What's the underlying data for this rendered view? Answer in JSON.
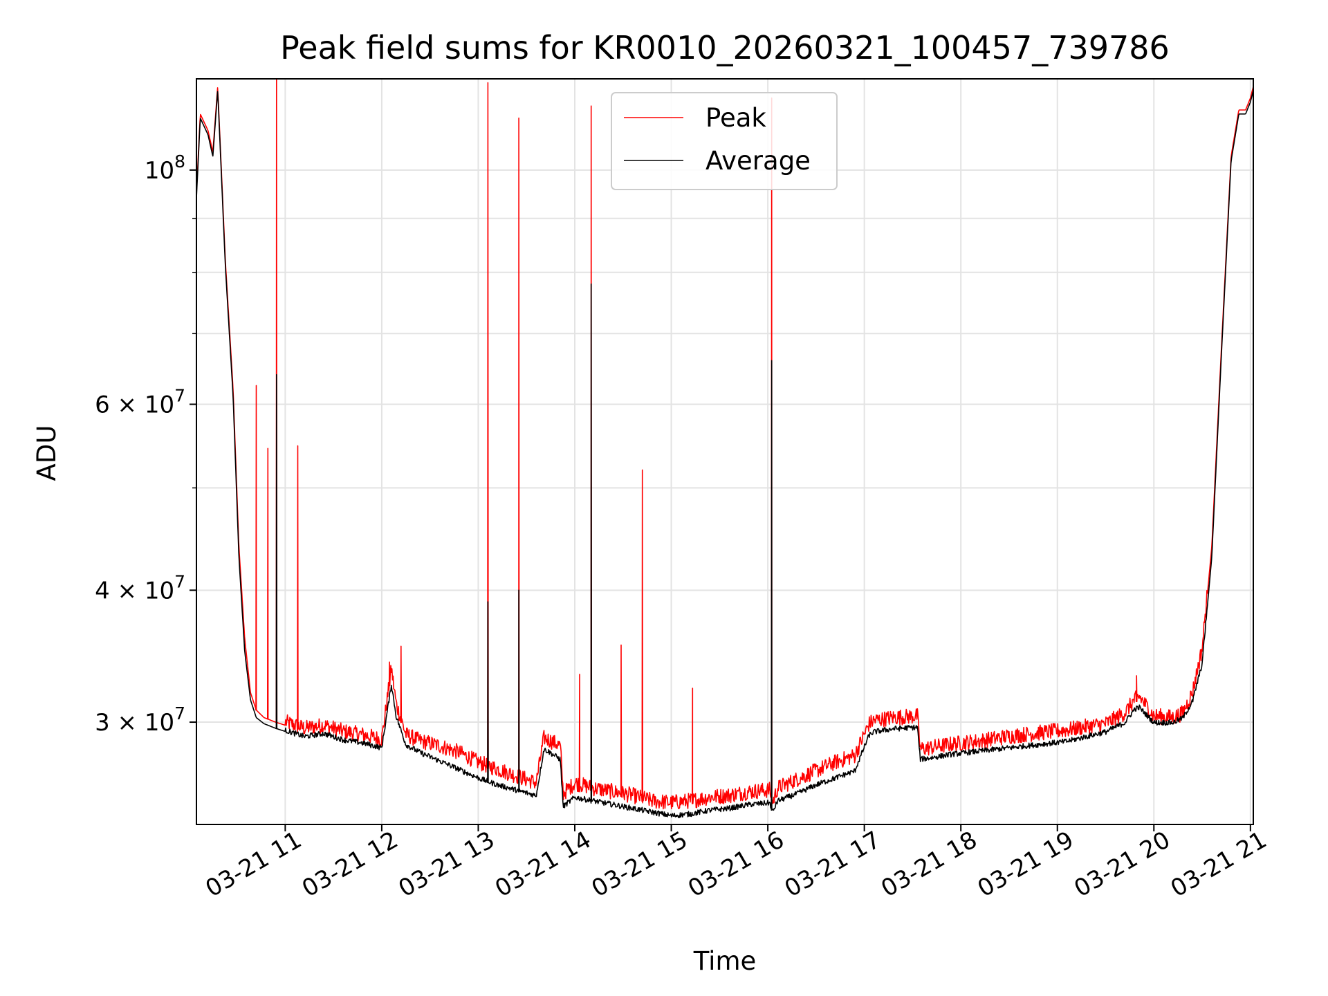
{
  "chart_data": {
    "type": "line",
    "title": "Peak field sums for KR0010_20260321_100457_739786",
    "xlabel": "Time",
    "ylabel": "ADU",
    "yscale": "log",
    "ylim": [
      24000000,
      122000000
    ],
    "xlim_hours": [
      10.08,
      21.03
    ],
    "grid": true,
    "legend_position": "upper center",
    "x_ticks": [
      {
        "value": 11,
        "label": "03-21 11"
      },
      {
        "value": 12,
        "label": "03-21 12"
      },
      {
        "value": 13,
        "label": "03-21 13"
      },
      {
        "value": 14,
        "label": "03-21 14"
      },
      {
        "value": 15,
        "label": "03-21 15"
      },
      {
        "value": 16,
        "label": "03-21 16"
      },
      {
        "value": 17,
        "label": "03-21 17"
      },
      {
        "value": 18,
        "label": "03-21 18"
      },
      {
        "value": 19,
        "label": "03-21 19"
      },
      {
        "value": 20,
        "label": "03-21 20"
      },
      {
        "value": 21,
        "label": "03-21 21"
      }
    ],
    "y_ticks": [
      {
        "value": 100000000,
        "base": "10",
        "exp": "8"
      },
      {
        "value": 60000000,
        "mantissa": "6",
        "times": "×",
        "base": "10",
        "exp": "7"
      },
      {
        "value": 40000000,
        "mantissa": "4",
        "times": "×",
        "base": "10",
        "exp": "7"
      },
      {
        "value": 30000000,
        "mantissa": "3",
        "times": "×",
        "base": "10",
        "exp": "7"
      }
    ],
    "y_minor_ticks": [
      50000000,
      70000000,
      80000000,
      90000000
    ],
    "series": [
      {
        "name": "Peak",
        "color": "#ff0000",
        "x": [
          10.08,
          10.12,
          10.2,
          10.25,
          10.3,
          10.38,
          10.46,
          10.52,
          10.58,
          10.64,
          10.7,
          10.78,
          10.9,
          11.0,
          11.2,
          11.4,
          11.6,
          11.8,
          12.0,
          12.1,
          12.15,
          12.25,
          12.4,
          12.6,
          12.8,
          13.0,
          13.2,
          13.4,
          13.6,
          13.68,
          13.72,
          13.85,
          13.88,
          14.0,
          14.2,
          14.4,
          14.6,
          14.8,
          15.0,
          15.2,
          15.4,
          15.6,
          15.8,
          16.02,
          16.05,
          16.1,
          16.3,
          16.5,
          16.7,
          16.9,
          17.05,
          17.1,
          17.3,
          17.55,
          17.58,
          17.7,
          17.9,
          18.2,
          18.5,
          18.8,
          19.1,
          19.3,
          19.5,
          19.7,
          19.8,
          19.85,
          20.0,
          20.2,
          20.3,
          20.4,
          20.5,
          20.6,
          20.7,
          20.8,
          20.88,
          20.95,
          21.0,
          21.03
        ],
        "y": [
          95000000,
          113000000,
          109000000,
          104000000,
          120000000,
          82000000,
          62000000,
          44000000,
          36000000,
          32000000,
          30800000,
          30300000,
          30000000,
          29800000,
          29400000,
          29600000,
          29200000,
          29000000,
          28700000,
          33500000,
          31000000,
          29000000,
          28600000,
          28300000,
          27900000,
          27300000,
          26900000,
          26500000,
          26100000,
          28800000,
          28700000,
          28300000,
          25500000,
          26100000,
          25800000,
          25600000,
          25400000,
          25100000,
          25000000,
          25100000,
          25300000,
          25400000,
          25600000,
          25700000,
          25000000,
          25800000,
          26300000,
          26800000,
          27300000,
          27700000,
          29700000,
          29900000,
          30100000,
          30200000,
          28100000,
          28200000,
          28400000,
          28600000,
          28900000,
          29100000,
          29300000,
          29500000,
          29700000,
          30400000,
          31300000,
          31500000,
          30200000,
          30100000,
          30400000,
          31800000,
          35000000,
          44000000,
          68000000,
          103000000,
          114000000,
          114000000,
          117000000,
          120000000
        ]
      },
      {
        "name": "Average",
        "color": "#000000",
        "x": [
          10.08,
          10.12,
          10.2,
          10.25,
          10.3,
          10.38,
          10.46,
          10.52,
          10.58,
          10.64,
          10.7,
          10.78,
          10.9,
          11.0,
          11.2,
          11.4,
          11.6,
          11.8,
          12.0,
          12.1,
          12.15,
          12.25,
          12.4,
          12.6,
          12.8,
          13.0,
          13.2,
          13.4,
          13.6,
          13.68,
          13.72,
          13.85,
          13.88,
          14.0,
          14.2,
          14.4,
          14.6,
          14.8,
          15.0,
          15.2,
          15.4,
          15.6,
          15.8,
          16.02,
          16.05,
          16.1,
          16.3,
          16.5,
          16.7,
          16.9,
          17.05,
          17.1,
          17.3,
          17.55,
          17.58,
          17.7,
          17.9,
          18.2,
          18.5,
          18.8,
          19.1,
          19.3,
          19.5,
          19.7,
          19.8,
          19.85,
          20.0,
          20.2,
          20.3,
          20.4,
          20.5,
          20.6,
          20.7,
          20.8,
          20.88,
          20.95,
          21.0,
          21.03
        ],
        "y": [
          94000000,
          112000000,
          108000000,
          103000000,
          119000000,
          81000000,
          61000000,
          43000000,
          35000000,
          31500000,
          30300000,
          29900000,
          29600000,
          29400000,
          29000000,
          29200000,
          28800000,
          28600000,
          28300000,
          32500000,
          30300000,
          28500000,
          28000000,
          27500000,
          27000000,
          26500000,
          26100000,
          25800000,
          25500000,
          28200000,
          28100000,
          27600000,
          24900000,
          25400000,
          25200000,
          25000000,
          24800000,
          24600000,
          24400000,
          24500000,
          24700000,
          24800000,
          25000000,
          25100000,
          24600000,
          25200000,
          25600000,
          26100000,
          26500000,
          26900000,
          29100000,
          29300000,
          29500000,
          29600000,
          27600000,
          27700000,
          27900000,
          28100000,
          28300000,
          28500000,
          28700000,
          29000000,
          29300000,
          29900000,
          30800000,
          30900000,
          29900000,
          29900000,
          30200000,
          31300000,
          34000000,
          43000000,
          67000000,
          102000000,
          113000000,
          113000000,
          116000000,
          119000000
        ]
      }
    ],
    "peak_spikes": [
      {
        "x": 10.7,
        "y": 62500000
      },
      {
        "x": 10.82,
        "y": 54500000
      },
      {
        "x": 10.91,
        "y": 122000000
      },
      {
        "x": 11.13,
        "y": 54800000
      },
      {
        "x": 12.08,
        "y": 34200000
      },
      {
        "x": 12.2,
        "y": 35400000
      },
      {
        "x": 13.1,
        "y": 121000000
      },
      {
        "x": 13.42,
        "y": 112000000
      },
      {
        "x": 14.05,
        "y": 33300000
      },
      {
        "x": 14.17,
        "y": 115000000
      },
      {
        "x": 14.48,
        "y": 35500000
      },
      {
        "x": 14.7,
        "y": 52000000
      },
      {
        "x": 15.22,
        "y": 32300000
      },
      {
        "x": 16.04,
        "y": 117000000
      },
      {
        "x": 19.82,
        "y": 33200000
      }
    ],
    "average_spikes": [
      {
        "x": 10.91,
        "y": 64000000
      },
      {
        "x": 13.1,
        "y": 39000000
      },
      {
        "x": 13.42,
        "y": 40000000
      },
      {
        "x": 14.17,
        "y": 78000000
      },
      {
        "x": 16.04,
        "y": 66000000
      }
    ]
  }
}
